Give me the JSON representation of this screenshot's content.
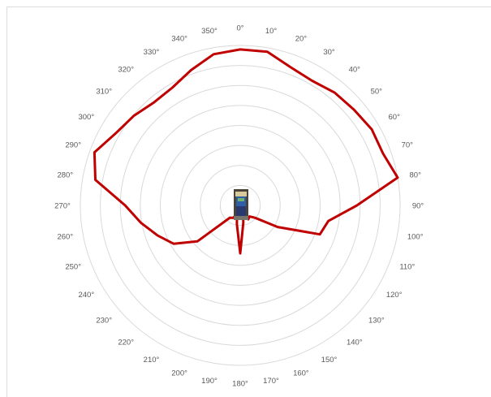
{
  "chart_data": {
    "type": "polar-line",
    "title": "",
    "angles": [
      0,
      10,
      20,
      30,
      40,
      50,
      60,
      70,
      80,
      90,
      100,
      110,
      120,
      130,
      140,
      150,
      160,
      170,
      180,
      190,
      200,
      210,
      220,
      230,
      240,
      250,
      260,
      270,
      280,
      290,
      300,
      310,
      320,
      330,
      340,
      350
    ],
    "angle_labels": [
      "0°",
      "10°",
      "20°",
      "30°",
      "40°",
      "50°",
      "60°",
      "70°",
      "80°",
      "90°",
      "100°",
      "110°",
      "120°",
      "130°",
      "140°",
      "150°",
      "160°",
      "170°",
      "180°",
      "190°",
      "200°",
      "210°",
      "220°",
      "230°",
      "240°",
      "250°",
      "260°",
      "270°",
      "280°",
      "290°",
      "300°",
      "310°",
      "320°",
      "330°",
      "340°",
      "350°"
    ],
    "series": [
      {
        "color": "#c00000",
        "points": [
          {
            "angle": 0,
            "r": 0.975
          },
          {
            "angle": 10,
            "r": 0.975
          },
          {
            "angle": 20,
            "r": 0.92
          },
          {
            "angle": 30,
            "r": 0.9
          },
          {
            "angle": 40,
            "r": 0.92
          },
          {
            "angle": 50,
            "r": 0.93
          },
          {
            "angle": 60,
            "r": 0.95
          },
          {
            "angle": 70,
            "r": 0.95
          },
          {
            "angle": 80,
            "r": 1.0
          },
          {
            "angle": 90,
            "r": 0.73
          },
          {
            "angle": 100,
            "r": 0.56
          },
          {
            "angle": 110,
            "r": 0.53
          },
          {
            "angle": 120,
            "r": 0.27
          },
          {
            "angle": 130,
            "r": 0.12
          },
          {
            "angle": 140,
            "r": 0.09
          },
          {
            "angle": 150,
            "r": 0.1
          },
          {
            "angle": 160,
            "r": 0.05
          },
          {
            "angle": 170,
            "r": 0.11
          },
          {
            "angle": 180,
            "r": 0.3
          },
          {
            "angle": 190,
            "r": 0.12
          },
          {
            "angle": 200,
            "r": 0.06
          },
          {
            "angle": 210,
            "r": 0.09
          },
          {
            "angle": 220,
            "r": 0.1
          },
          {
            "angle": 230,
            "r": 0.35
          },
          {
            "angle": 240,
            "r": 0.48
          },
          {
            "angle": 250,
            "r": 0.55
          },
          {
            "angle": 260,
            "r": 0.63
          },
          {
            "angle": 270,
            "r": 0.72
          },
          {
            "angle": 280,
            "r": 0.92
          },
          {
            "angle": 290,
            "r": 0.97
          },
          {
            "angle": 300,
            "r": 0.9
          },
          {
            "angle": 310,
            "r": 0.87
          },
          {
            "angle": 320,
            "r": 0.84
          },
          {
            "angle": 330,
            "r": 0.85
          },
          {
            "angle": 340,
            "r": 0.9
          },
          {
            "angle": 350,
            "r": 0.96
          }
        ]
      }
    ],
    "rmax": 1.0,
    "grid": true,
    "grid_rings": 8,
    "grid_color": "#d9d9d9",
    "legend": "none",
    "center_image": "device-photo"
  }
}
